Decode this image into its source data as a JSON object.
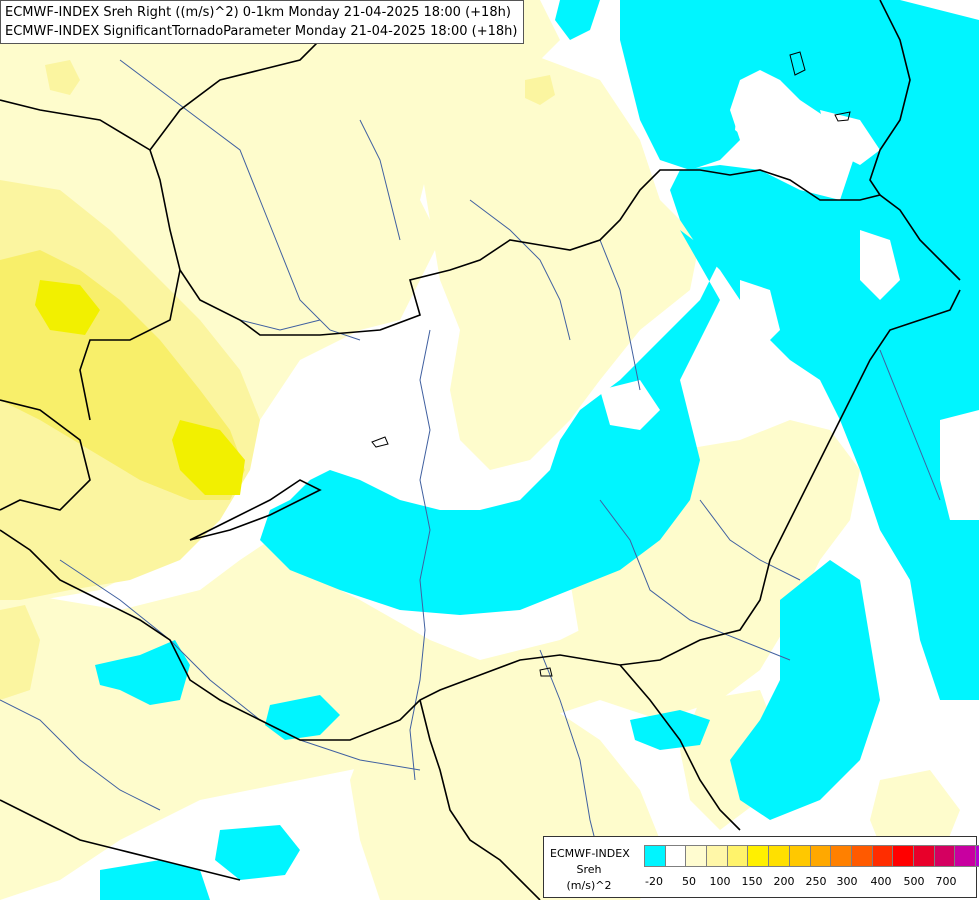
{
  "title": {
    "line1": "ECMWF-INDEX Sreh Right ((m/s)^2) 0-1km Monday 21-04-2025 18:00 (+18h)",
    "line2": "ECMWF-INDEX SignificantTornadoParameter Monday 21-04-2025 18:00 (+18h)"
  },
  "legend": {
    "org": "ECMWF-INDEX",
    "variable": "Sreh",
    "unit": "(m/s)^2",
    "colors": [
      "#00f5ff",
      "#ffffff",
      "#fffcd0",
      "#fff7a8",
      "#fff36b",
      "#fff000",
      "#ffe000",
      "#ffc800",
      "#ffa800",
      "#ff8000",
      "#ff5a00",
      "#ff2d00",
      "#ff0000",
      "#e8002a",
      "#d40060",
      "#c800a0",
      "#b400d4",
      "#9b00e6",
      "#7a00e6",
      "#5a00c8",
      "#3a00a8",
      "#1e0082"
    ],
    "ticks": [
      "-20",
      "50",
      "100",
      "150",
      "200",
      "250",
      "300",
      "400",
      "500",
      "700"
    ]
  },
  "map_colors": {
    "background": "#ffffff",
    "pale_yellow": "#fefccc",
    "light_yellow": "#fbf5a0",
    "yellow": "#f8ef6a",
    "bright_yellow": "#f2f000",
    "cyan": "#00f5ff",
    "river": "#4060a0",
    "border": "#000000"
  }
}
